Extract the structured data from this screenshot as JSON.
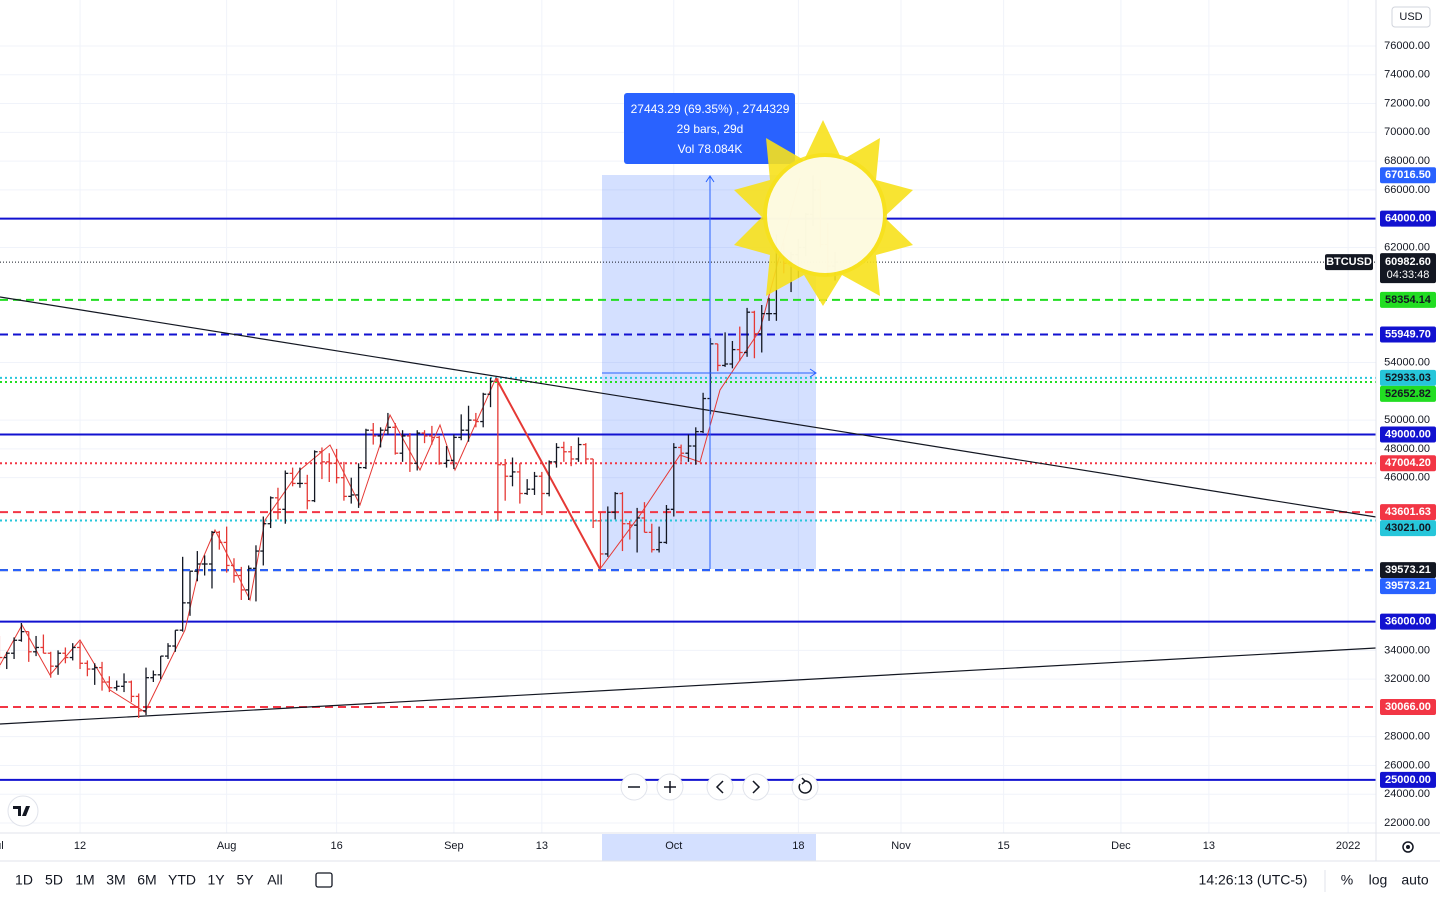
{
  "chart_data": {
    "type": "ohlc",
    "up_color": "#131722",
    "down_color": "#e53935",
    "xlim": [
      0.08,
      187.8
    ],
    "ylim": [
      21306,
      79197
    ],
    "xticks": [
      {
        "value": 0,
        "label": "ul"
      },
      {
        "value": 11,
        "label": "12"
      },
      {
        "value": 31,
        "label": "Aug"
      },
      {
        "value": 46,
        "label": "16"
      },
      {
        "value": 62,
        "label": "Sep"
      },
      {
        "value": 74,
        "label": "13"
      },
      {
        "value": 92,
        "label": "Oct"
      },
      {
        "value": 109,
        "label": "18"
      },
      {
        "value": 123,
        "label": "Nov"
      },
      {
        "value": 137,
        "label": "15"
      },
      {
        "value": 153,
        "label": "Dec"
      },
      {
        "value": 165,
        "label": "13"
      },
      {
        "value": 184,
        "label": "2022"
      }
    ],
    "yticks": [
      {
        "value": 76000,
        "label": "76000.00"
      },
      {
        "value": 74000,
        "label": "74000.00"
      },
      {
        "value": 72000,
        "label": "72000.00"
      },
      {
        "value": 70000,
        "label": "70000.00"
      },
      {
        "value": 68000,
        "label": "68000.00"
      },
      {
        "value": 66000,
        "label": "66000.00"
      },
      {
        "value": 62000,
        "label": "62000.00"
      },
      {
        "value": 54000,
        "label": "54000.00"
      },
      {
        "value": 50000,
        "label": "50000.00"
      },
      {
        "value": 48000,
        "label": "48000.00"
      },
      {
        "value": 46000,
        "label": "46000.00"
      },
      {
        "value": 34000,
        "label": "34000.00"
      },
      {
        "value": 32000,
        "label": "32000.00"
      },
      {
        "value": 28000,
        "label": "28000.00"
      },
      {
        "value": 26000,
        "label": "26000.00"
      },
      {
        "value": 24000,
        "label": "24000.00"
      },
      {
        "value": 22000,
        "label": "22000.00"
      }
    ],
    "bars": [
      [
        34500,
        35000,
        32800,
        33500
      ],
      [
        33500,
        33900,
        32700,
        33800
      ],
      [
        33800,
        34900,
        33400,
        34700
      ],
      [
        34700,
        35900,
        34600,
        35300
      ],
      [
        35300,
        35300,
        33200,
        33900
      ],
      [
        33900,
        35000,
        33600,
        34200
      ],
      [
        34200,
        35100,
        33800,
        33800
      ],
      [
        33800,
        33900,
        32100,
        32900
      ],
      [
        32900,
        34000,
        32300,
        33800
      ],
      [
        33800,
        34200,
        33100,
        33500
      ],
      [
        33500,
        34500,
        33300,
        34200
      ],
      [
        34200,
        34600,
        32700,
        33100
      ],
      [
        33100,
        33300,
        32200,
        32700
      ],
      [
        32700,
        33100,
        31600,
        32800
      ],
      [
        32800,
        33200,
        31200,
        31800
      ],
      [
        31800,
        32200,
        31100,
        31400
      ],
      [
        31400,
        31900,
        31200,
        31500
      ],
      [
        31500,
        32400,
        31100,
        31800
      ],
      [
        31800,
        31900,
        30400,
        30800
      ],
      [
        30800,
        31000,
        29300,
        29800
      ],
      [
        29800,
        32800,
        29500,
        32100
      ],
      [
        32100,
        32600,
        31800,
        32300
      ],
      [
        32300,
        33600,
        32000,
        33600
      ],
      [
        33600,
        34500,
        33400,
        34300
      ],
      [
        34300,
        35400,
        33900,
        35400
      ],
      [
        35400,
        40500,
        35300,
        37300
      ],
      [
        37300,
        39500,
        36400,
        39500
      ],
      [
        39500,
        40900,
        38800,
        40000
      ],
      [
        40000,
        40600,
        39200,
        40000
      ],
      [
        40000,
        42300,
        38300,
        42200
      ],
      [
        42200,
        42300,
        41000,
        41500
      ],
      [
        41500,
        42600,
        39400,
        39900
      ],
      [
        39900,
        40400,
        38700,
        39200
      ],
      [
        39200,
        39800,
        37500,
        38200
      ],
      [
        38200,
        39900,
        37500,
        39700
      ],
      [
        39700,
        41300,
        37400,
        40900
      ],
      [
        40900,
        43300,
        39900,
        42800
      ],
      [
        42800,
        44700,
        42500,
        44600
      ],
      [
        44600,
        45300,
        43100,
        43800
      ],
      [
        43800,
        46500,
        42800,
        46300
      ],
      [
        46300,
        46700,
        45400,
        45600
      ],
      [
        45600,
        46700,
        45300,
        45600
      ],
      [
        45600,
        46200,
        43800,
        44400
      ],
      [
        44400,
        47900,
        44300,
        47800
      ],
      [
        47800,
        48100,
        45900,
        47100
      ],
      [
        47100,
        47700,
        45700,
        47000
      ],
      [
        47000,
        48000,
        45600,
        46000
      ],
      [
        46000,
        47100,
        44400,
        44700
      ],
      [
        44700,
        46000,
        44200,
        44800
      ],
      [
        44800,
        47000,
        43900,
        46700
      ],
      [
        46700,
        49400,
        46600,
        49300
      ],
      [
        49300,
        49800,
        48300,
        48900
      ],
      [
        48900,
        49500,
        48100,
        49300
      ],
      [
        49300,
        50500,
        49000,
        49500
      ],
      [
        49500,
        49800,
        47600,
        47700
      ],
      [
        47700,
        49300,
        47100,
        48900
      ],
      [
        48900,
        49100,
        46400,
        47000
      ],
      [
        47000,
        49300,
        46500,
        49100
      ],
      [
        49100,
        49300,
        48400,
        48900
      ],
      [
        48900,
        49600,
        48300,
        48800
      ],
      [
        48800,
        48900,
        46900,
        47000
      ],
      [
        47000,
        48200,
        46700,
        47200
      ],
      [
        47200,
        49000,
        46600,
        48800
      ],
      [
        48800,
        50400,
        48600,
        49300
      ],
      [
        49300,
        51000,
        48500,
        50000
      ],
      [
        50000,
        50500,
        49500,
        49900
      ],
      [
        49900,
        51900,
        49500,
        51800
      ],
      [
        51800,
        52933,
        50900,
        52700
      ],
      [
        52700,
        52900,
        43000,
        46900
      ],
      [
        46900,
        47300,
        44400,
        46100
      ],
      [
        46100,
        47400,
        45400,
        46400
      ],
      [
        46400,
        47000,
        44200,
        44900
      ],
      [
        44900,
        45900,
        44800,
        45200
      ],
      [
        45200,
        46400,
        44800,
        46100
      ],
      [
        46100,
        46400,
        43400,
        44900
      ],
      [
        44900,
        47200,
        44700,
        47100
      ],
      [
        47100,
        48400,
        46700,
        48100
      ],
      [
        48100,
        48500,
        47100,
        47800
      ],
      [
        47800,
        48200,
        46800,
        47300
      ],
      [
        47300,
        48800,
        47100,
        48300
      ],
      [
        48300,
        48400,
        47000,
        47300
      ],
      [
        47300,
        47300,
        42500,
        43000
      ],
      [
        43000,
        43600,
        39573,
        40700
      ],
      [
        40700,
        44000,
        40500,
        43600
      ],
      [
        43600,
        45000,
        43100,
        44900
      ],
      [
        44900,
        45000,
        40900,
        42800
      ],
      [
        42800,
        43000,
        41700,
        42700
      ],
      [
        42700,
        43900,
        40800,
        43200
      ],
      [
        43200,
        44300,
        42200,
        42200
      ],
      [
        42200,
        42800,
        40800,
        41000
      ],
      [
        41000,
        42600,
        40800,
        41500
      ],
      [
        41500,
        44100,
        41400,
        43800
      ],
      [
        43800,
        48400,
        43300,
        48100
      ],
      [
        48100,
        48300,
        47100,
        47700
      ],
      [
        47700,
        49000,
        47100,
        48200
      ],
      [
        48200,
        49500,
        46900,
        49200
      ],
      [
        49200,
        51900,
        49100,
        51500
      ],
      [
        51500,
        55700,
        50400,
        55300
      ],
      [
        55300,
        55300,
        53400,
        53800
      ],
      [
        53800,
        56100,
        53700,
        53900
      ],
      [
        53900,
        55500,
        53600,
        54900
      ],
      [
        54900,
        56500,
        54100,
        54700
      ],
      [
        54700,
        57800,
        54400,
        57500
      ],
      [
        57500,
        57600,
        54300,
        56000
      ],
      [
        56000,
        58000,
        54700,
        57400
      ],
      [
        57400,
        58500,
        56900,
        57400
      ],
      [
        57400,
        62900,
        56900,
        61700
      ],
      [
        61700,
        62300,
        60200,
        60900
      ],
      [
        60900,
        61700,
        58900,
        61500
      ],
      [
        61500,
        62600,
        59900,
        62000
      ],
      [
        62000,
        64400,
        61400,
        64300
      ],
      [
        64300,
        67016.5,
        63500,
        66000
      ],
      [
        66000,
        66700,
        62000,
        62200
      ],
      [
        62200,
        63700,
        60000,
        60700
      ],
      [
        60700,
        61700,
        59700,
        60982.6
      ]
    ],
    "levels": [
      {
        "value": 67016.5,
        "label": "67016.50",
        "color": "#2962ff",
        "style": "none"
      },
      {
        "value": 64000,
        "label": "64000.00",
        "color": "#1212d0",
        "style": "solid"
      },
      {
        "value": 58354.14,
        "label": "58354.14",
        "color": "#22dd22",
        "style": "dashed"
      },
      {
        "value": 55949.7,
        "label": "55949.70",
        "color": "#1212d0",
        "style": "dashed"
      },
      {
        "value": 52933.03,
        "label": "52933.03",
        "color": "#26c6da",
        "style": "dotted"
      },
      {
        "value": 52652.82,
        "label": "52652.82",
        "color": "#22dd22",
        "style": "dotted"
      },
      {
        "value": 49000,
        "label": "49000.00",
        "color": "#1212d0",
        "style": "solid"
      },
      {
        "value": 47004.2,
        "label": "47004.20",
        "color": "#f23645",
        "style": "dotted"
      },
      {
        "value": 43601.63,
        "label": "43601.63",
        "color": "#f23645",
        "style": "dashed"
      },
      {
        "value": 43021,
        "label": "43021.00",
        "color": "#26c6da",
        "style": "dotted"
      },
      {
        "value": 39573.21,
        "label": "39573.21",
        "color": "#131722",
        "style": "dashed"
      },
      {
        "value": 39573.21,
        "label": "39573.21",
        "color": "#2962ff",
        "style": "dashed"
      },
      {
        "value": 36000,
        "label": "36000.00",
        "color": "#1212d0",
        "style": "solid"
      },
      {
        "value": 30066,
        "label": "30066.00",
        "color": "#f23645",
        "style": "dashed"
      },
      {
        "value": 25000,
        "label": "25000.00",
        "color": "#1212d0",
        "style": "solid"
      }
    ],
    "last": {
      "symbol": "BTCUSD",
      "price": {
        "value": 60982.6,
        "label": "60982.60"
      },
      "countdown": "04:33:48"
    },
    "measure": {
      "line1": "27443.29 (69.35%) , 2744329",
      "line2": "29 bars, 29d",
      "line3": "Vol 78.084K"
    }
  },
  "ui": {
    "currency": "USD",
    "ranges": [
      "1D",
      "5D",
      "1M",
      "3M",
      "6M",
      "YTD",
      "1Y",
      "5Y",
      "All"
    ],
    "clock": "14:26:13 (UTC-5)",
    "percent": "%",
    "log": "log",
    "auto": "auto"
  }
}
